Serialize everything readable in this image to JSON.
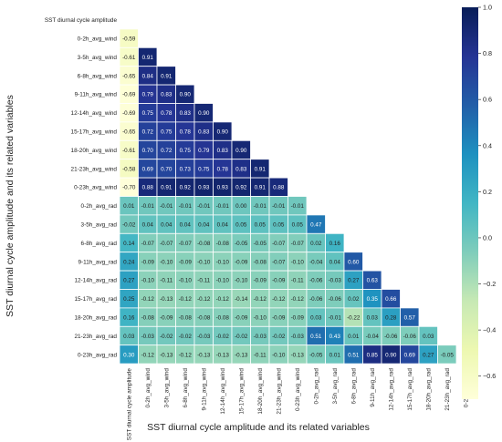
{
  "chart_data": {
    "type": "heatmap",
    "layout": "lower-triangle-masked",
    "xlabel": "SST diurnal cycle amplitude and its related variables",
    "ylabel": "SST diurnal cycle amplitude and its related variables",
    "variables": [
      "SST diurnal cycle amplitude",
      "0-2h_avg_wind",
      "3-5h_avg_wind",
      "6-8h_avg_wind",
      "9-11h_avg_wind",
      "12-14h_avg_wind",
      "15-17h_avg_wind",
      "18-20h_avg_wind",
      "21-23h_avg_wind",
      "0-23h_avg_wind",
      "0-2h_avg_rad",
      "3-5h_avg_rad",
      "6-8h_avg_rad",
      "9-11h_avg_rad",
      "12-14h_avg_rad",
      "15-17h_avg_rad",
      "18-20h_avg_rad",
      "21-23h_avg_rad",
      "0-23h_avg_rad"
    ],
    "rows": [
      [],
      [
        -0.59
      ],
      [
        -0.61,
        0.91
      ],
      [
        -0.65,
        0.84,
        0.91
      ],
      [
        -0.69,
        0.79,
        0.83,
        0.9
      ],
      [
        -0.69,
        0.75,
        0.78,
        0.83,
        0.9
      ],
      [
        -0.65,
        0.72,
        0.75,
        0.78,
        0.83,
        0.9
      ],
      [
        -0.61,
        0.7,
        0.72,
        0.75,
        0.79,
        0.83,
        0.9
      ],
      [
        -0.58,
        0.69,
        0.7,
        0.73,
        0.75,
        0.78,
        0.83,
        0.91
      ],
      [
        -0.7,
        0.88,
        0.91,
        0.92,
        0.93,
        0.93,
        0.92,
        0.91,
        0.88
      ],
      [
        0.01,
        -0.01,
        -0.01,
        -0.01,
        -0.01,
        -0.01,
        -0.0,
        -0.01,
        -0.01,
        -0.01
      ],
      [
        -0.02,
        0.04,
        0.04,
        0.04,
        0.04,
        0.04,
        0.05,
        0.05,
        0.05,
        0.05,
        0.47
      ],
      [
        0.14,
        -0.07,
        -0.07,
        -0.07,
        -0.08,
        -0.08,
        -0.05,
        -0.05,
        -0.07,
        -0.07,
        0.02,
        0.16
      ],
      [
        0.24,
        -0.09,
        -0.1,
        -0.09,
        -0.1,
        -0.1,
        -0.09,
        -0.08,
        -0.07,
        -0.1,
        -0.04,
        0.04,
        0.6
      ],
      [
        0.27,
        -0.1,
        -0.11,
        -0.1,
        -0.11,
        -0.1,
        -0.1,
        -0.09,
        -0.09,
        -0.11,
        -0.06,
        -0.03,
        0.27,
        0.63
      ],
      [
        0.25,
        -0.12,
        -0.13,
        -0.12,
        -0.12,
        -0.12,
        -0.14,
        -0.12,
        -0.12,
        -0.12,
        -0.06,
        -0.06,
        0.02,
        0.35,
        0.66
      ],
      [
        0.16,
        -0.08,
        -0.09,
        -0.08,
        -0.08,
        -0.08,
        -0.09,
        -0.1,
        -0.09,
        -0.09,
        0.03,
        -0.01,
        -0.22,
        0.03,
        0.28,
        0.57
      ],
      [
        0.03,
        -0.03,
        -0.02,
        -0.02,
        -0.03,
        -0.02,
        -0.02,
        -0.03,
        -0.02,
        -0.03,
        0.51,
        0.43,
        0.01,
        -0.04,
        -0.06,
        -0.06,
        0.03
      ],
      [
        0.3,
        -0.12,
        -0.13,
        -0.12,
        -0.13,
        -0.13,
        -0.13,
        -0.11,
        -0.1,
        -0.13,
        -0.05,
        0.01,
        0.51,
        0.85,
        0.9,
        0.69,
        0.27,
        -0.05
      ]
    ],
    "vmin": -0.7,
    "vmax": 1.0,
    "colorbar_ticks": [
      1.0,
      0.8,
      0.6,
      0.4,
      0.2,
      0.0,
      -0.2,
      -0.4,
      -0.6
    ],
    "colormap": [
      "#ffffd9",
      "#edf8b1",
      "#c7e9b4",
      "#7fcdbb",
      "#41b6c4",
      "#1d91c0",
      "#225ea8",
      "#253494",
      "#081d58"
    ],
    "grid": false,
    "colorbar_position": "right"
  }
}
